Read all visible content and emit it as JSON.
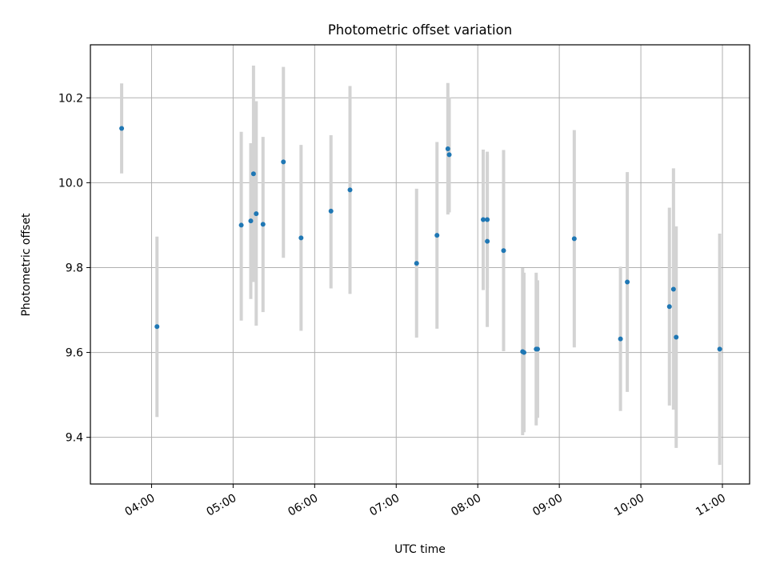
{
  "chart_data": {
    "type": "scatter",
    "title": "Photometric offset variation",
    "xlabel": "UTC time",
    "ylabel": "Photometric offset",
    "x_axis_type": "time",
    "xlim": [
      "03:15",
      "11:20"
    ],
    "ylim": [
      9.29,
      10.325
    ],
    "x_ticks": [
      "04:00",
      "05:00",
      "06:00",
      "07:00",
      "08:00",
      "09:00",
      "10:00",
      "11:00"
    ],
    "y_ticks": [
      9.4,
      9.6,
      9.8,
      10.0,
      10.2
    ],
    "y_tick_labels": [
      "9.4",
      "9.6",
      "9.8",
      "10.0",
      "10.2"
    ],
    "grid": true,
    "legend": "none",
    "colors": {
      "point": "#1f77b4",
      "errorbar": "#d3d3d3",
      "grid": "#b0b0b0"
    },
    "points": [
      {
        "x": "03:38",
        "y": 10.128,
        "ylo": 10.022,
        "yhi": 10.234
      },
      {
        "x": "04:04",
        "y": 9.661,
        "ylo": 9.448,
        "yhi": 9.873
      },
      {
        "x": "05:06",
        "y": 9.9,
        "ylo": 9.675,
        "yhi": 10.12
      },
      {
        "x": "05:13",
        "y": 9.91,
        "ylo": 9.726,
        "yhi": 10.093
      },
      {
        "x": "05:15",
        "y": 10.021,
        "ylo": 9.766,
        "yhi": 10.276
      },
      {
        "x": "05:17",
        "y": 9.927,
        "ylo": 9.663,
        "yhi": 10.192
      },
      {
        "x": "05:22",
        "y": 9.902,
        "ylo": 9.695,
        "yhi": 10.108
      },
      {
        "x": "05:37",
        "y": 10.049,
        "ylo": 9.823,
        "yhi": 10.273
      },
      {
        "x": "05:50",
        "y": 9.87,
        "ylo": 9.651,
        "yhi": 10.089
      },
      {
        "x": "06:12",
        "y": 9.933,
        "ylo": 9.751,
        "yhi": 10.112
      },
      {
        "x": "06:26",
        "y": 9.983,
        "ylo": 9.738,
        "yhi": 10.228
      },
      {
        "x": "07:15",
        "y": 9.81,
        "ylo": 9.635,
        "yhi": 9.986
      },
      {
        "x": "07:30",
        "y": 9.876,
        "ylo": 9.656,
        "yhi": 10.096
      },
      {
        "x": "07:38",
        "y": 10.08,
        "ylo": 9.925,
        "yhi": 10.235
      },
      {
        "x": "07:39",
        "y": 10.066,
        "ylo": 9.93,
        "yhi": 10.201
      },
      {
        "x": "08:04",
        "y": 9.913,
        "ylo": 9.747,
        "yhi": 10.078
      },
      {
        "x": "08:07",
        "y": 9.913,
        "ylo": 9.752,
        "yhi": 10.073
      },
      {
        "x": "08:07",
        "y": 9.862,
        "ylo": 9.66,
        "yhi": 10.065
      },
      {
        "x": "08:19",
        "y": 9.84,
        "ylo": 9.603,
        "yhi": 10.077
      },
      {
        "x": "08:33",
        "y": 9.602,
        "ylo": 9.405,
        "yhi": 9.799
      },
      {
        "x": "08:34",
        "y": 9.6,
        "ylo": 9.412,
        "yhi": 9.788
      },
      {
        "x": "08:43",
        "y": 9.608,
        "ylo": 9.428,
        "yhi": 9.788
      },
      {
        "x": "08:44",
        "y": 9.608,
        "ylo": 9.446,
        "yhi": 9.77
      },
      {
        "x": "09:11",
        "y": 9.868,
        "ylo": 9.612,
        "yhi": 10.124
      },
      {
        "x": "09:45",
        "y": 9.632,
        "ylo": 9.462,
        "yhi": 9.802
      },
      {
        "x": "09:50",
        "y": 9.766,
        "ylo": 9.507,
        "yhi": 10.025
      },
      {
        "x": "10:21",
        "y": 9.708,
        "ylo": 9.475,
        "yhi": 9.941
      },
      {
        "x": "10:24",
        "y": 9.749,
        "ylo": 9.465,
        "yhi": 10.034
      },
      {
        "x": "10:26",
        "y": 9.636,
        "ylo": 9.375,
        "yhi": 9.897
      },
      {
        "x": "10:58",
        "y": 9.608,
        "ylo": 9.335,
        "yhi": 9.88
      }
    ]
  }
}
